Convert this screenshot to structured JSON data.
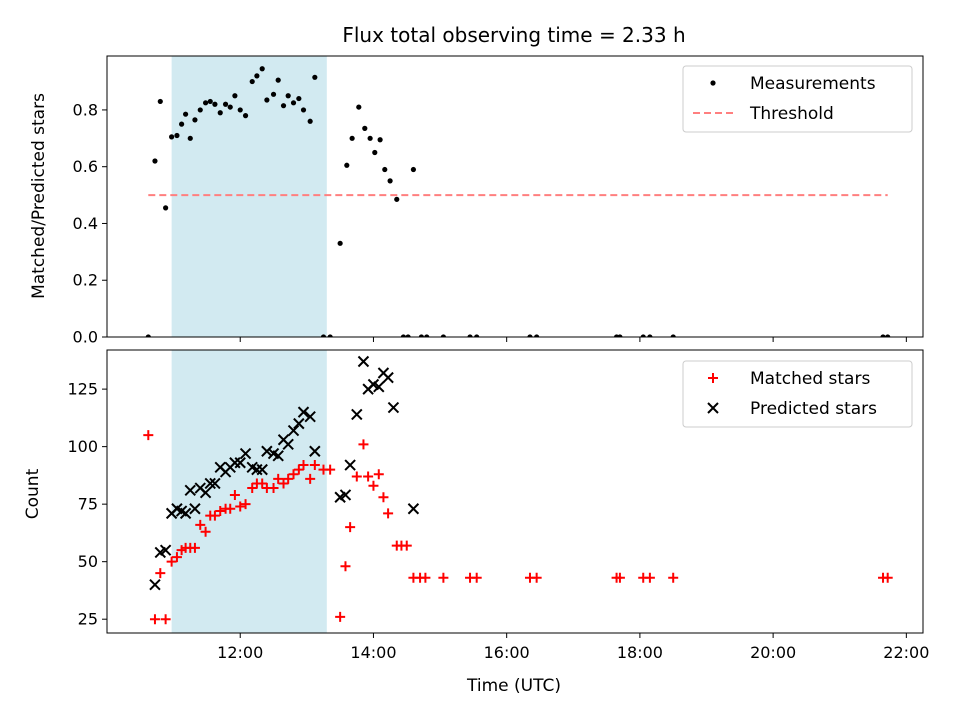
{
  "chart_data": {
    "type": "scatter",
    "title": "Flux total observing time = 2.33 h",
    "xlabel": "Time (UTC)",
    "xlim": [
      10.0,
      22.25
    ],
    "x_ticks": [
      12,
      14,
      16,
      18,
      20,
      22
    ],
    "x_tick_labels": [
      "12:00",
      "14:00",
      "16:00",
      "18:00",
      "20:00",
      "22:00"
    ],
    "shaded_interval": [
      10.97,
      13.3
    ],
    "shaded_color": "#add8e6",
    "panels": [
      {
        "ylabel": "Matched/Predicted stars",
        "ylim": [
          0.0,
          0.99
        ],
        "y_ticks": [
          0.0,
          0.2,
          0.4,
          0.6,
          0.8
        ],
        "y_tick_labels": [
          "0.0",
          "0.2",
          "0.4",
          "0.6",
          "0.8"
        ],
        "legend_position": "top-right",
        "series": [
          {
            "name": "Measurements",
            "kind": "dot",
            "color": "#000000",
            "points": [
              [
                10.62,
                0.0
              ],
              [
                10.72,
                0.62
              ],
              [
                10.8,
                0.83
              ],
              [
                10.88,
                0.455
              ],
              [
                10.97,
                0.705
              ],
              [
                11.05,
                0.71
              ],
              [
                11.12,
                0.75
              ],
              [
                11.18,
                0.785
              ],
              [
                11.25,
                0.7
              ],
              [
                11.32,
                0.765
              ],
              [
                11.4,
                0.8
              ],
              [
                11.48,
                0.825
              ],
              [
                11.55,
                0.83
              ],
              [
                11.62,
                0.82
              ],
              [
                11.7,
                0.79
              ],
              [
                11.78,
                0.82
              ],
              [
                11.85,
                0.81
              ],
              [
                11.92,
                0.85
              ],
              [
                12.0,
                0.8
              ],
              [
                12.08,
                0.78
              ],
              [
                12.18,
                0.9
              ],
              [
                12.25,
                0.92
              ],
              [
                12.33,
                0.945
              ],
              [
                12.4,
                0.835
              ],
              [
                12.5,
                0.855
              ],
              [
                12.57,
                0.905
              ],
              [
                12.65,
                0.815
              ],
              [
                12.72,
                0.85
              ],
              [
                12.8,
                0.825
              ],
              [
                12.88,
                0.84
              ],
              [
                12.95,
                0.8
              ],
              [
                13.05,
                0.76
              ],
              [
                13.12,
                0.915
              ],
              [
                13.25,
                0.0
              ],
              [
                13.35,
                0.0
              ],
              [
                13.5,
                0.33
              ],
              [
                13.6,
                0.605
              ],
              [
                13.68,
                0.7
              ],
              [
                13.78,
                0.81
              ],
              [
                13.87,
                0.735
              ],
              [
                13.95,
                0.7
              ],
              [
                14.02,
                0.65
              ],
              [
                14.1,
                0.695
              ],
              [
                14.17,
                0.59
              ],
              [
                14.25,
                0.55
              ],
              [
                14.35,
                0.485
              ],
              [
                14.45,
                0.0
              ],
              [
                14.52,
                0.0
              ],
              [
                14.6,
                0.59
              ],
              [
                14.72,
                0.0
              ],
              [
                14.8,
                0.0
              ],
              [
                15.05,
                0.0
              ],
              [
                15.45,
                0.0
              ],
              [
                15.55,
                0.0
              ],
              [
                16.35,
                0.0
              ],
              [
                16.45,
                0.0
              ],
              [
                17.65,
                0.0
              ],
              [
                17.7,
                0.0
              ],
              [
                18.05,
                0.0
              ],
              [
                18.15,
                0.0
              ],
              [
                18.5,
                0.0
              ],
              [
                21.65,
                0.0
              ],
              [
                21.72,
                0.0
              ]
            ]
          },
          {
            "name": "Threshold",
            "kind": "dashed-line",
            "color": "#ff7f7f",
            "points": [
              [
                10.62,
                0.5
              ],
              [
                21.72,
                0.5
              ]
            ]
          }
        ]
      },
      {
        "ylabel": "Count",
        "ylim": [
          19,
          142
        ],
        "y_ticks": [
          25,
          50,
          75,
          100,
          125
        ],
        "y_tick_labels": [
          "25",
          "50",
          "75",
          "100",
          "125"
        ],
        "legend_position": "top-right",
        "series": [
          {
            "name": "Matched stars",
            "kind": "plus",
            "color": "#ff0000",
            "points": [
              [
                10.62,
                105
              ],
              [
                10.72,
                25
              ],
              [
                10.8,
                45
              ],
              [
                10.88,
                25
              ],
              [
                10.97,
                50
              ],
              [
                11.05,
                52
              ],
              [
                11.12,
                55
              ],
              [
                11.18,
                56
              ],
              [
                11.25,
                56
              ],
              [
                11.32,
                56
              ],
              [
                11.4,
                66
              ],
              [
                11.48,
                63
              ],
              [
                11.55,
                70
              ],
              [
                11.62,
                70
              ],
              [
                11.7,
                72
              ],
              [
                11.78,
                73
              ],
              [
                11.85,
                73
              ],
              [
                11.92,
                79
              ],
              [
                12.0,
                74
              ],
              [
                12.08,
                75
              ],
              [
                12.18,
                82
              ],
              [
                12.25,
                84
              ],
              [
                12.33,
                84
              ],
              [
                12.4,
                82
              ],
              [
                12.5,
                82
              ],
              [
                12.57,
                86
              ],
              [
                12.65,
                84
              ],
              [
                12.72,
                86
              ],
              [
                12.8,
                88
              ],
              [
                12.88,
                90
              ],
              [
                12.95,
                92
              ],
              [
                13.05,
                86
              ],
              [
                13.12,
                92
              ],
              [
                13.25,
                90
              ],
              [
                13.35,
                90
              ],
              [
                13.5,
                26
              ],
              [
                13.58,
                48
              ],
              [
                13.65,
                65
              ],
              [
                13.75,
                87
              ],
              [
                13.85,
                101
              ],
              [
                13.92,
                87
              ],
              [
                14.0,
                83
              ],
              [
                14.08,
                88
              ],
              [
                14.15,
                78
              ],
              [
                14.22,
                71
              ],
              [
                14.35,
                57
              ],
              [
                14.42,
                57
              ],
              [
                14.5,
                57
              ],
              [
                14.6,
                43
              ],
              [
                14.7,
                43
              ],
              [
                14.78,
                43
              ],
              [
                15.05,
                43
              ],
              [
                15.45,
                43
              ],
              [
                15.55,
                43
              ],
              [
                16.35,
                43
              ],
              [
                16.45,
                43
              ],
              [
                17.65,
                43
              ],
              [
                17.7,
                43
              ],
              [
                18.05,
                43
              ],
              [
                18.15,
                43
              ],
              [
                18.5,
                43
              ],
              [
                21.65,
                43
              ],
              [
                21.72,
                43
              ]
            ]
          },
          {
            "name": "Predicted stars",
            "kind": "x",
            "color": "#000000",
            "points": [
              [
                10.72,
                40
              ],
              [
                10.8,
                54
              ],
              [
                10.88,
                55
              ],
              [
                10.97,
                71
              ],
              [
                11.05,
                73
              ],
              [
                11.12,
                72
              ],
              [
                11.18,
                71
              ],
              [
                11.25,
                81
              ],
              [
                11.32,
                73
              ],
              [
                11.4,
                82
              ],
              [
                11.48,
                80
              ],
              [
                11.55,
                84
              ],
              [
                11.62,
                84
              ],
              [
                11.7,
                91
              ],
              [
                11.78,
                89
              ],
              [
                11.85,
                91
              ],
              [
                11.92,
                93
              ],
              [
                12.0,
                93
              ],
              [
                12.08,
                97
              ],
              [
                12.18,
                91
              ],
              [
                12.25,
                90
              ],
              [
                12.33,
                90
              ],
              [
                12.4,
                98
              ],
              [
                12.5,
                97
              ],
              [
                12.57,
                96
              ],
              [
                12.65,
                103
              ],
              [
                12.72,
                101
              ],
              [
                12.8,
                107
              ],
              [
                12.88,
                110
              ],
              [
                12.95,
                115
              ],
              [
                13.05,
                113
              ],
              [
                13.12,
                98
              ],
              [
                13.5,
                78
              ],
              [
                13.58,
                79
              ],
              [
                13.65,
                92
              ],
              [
                13.75,
                114
              ],
              [
                13.85,
                137
              ],
              [
                13.92,
                125
              ],
              [
                14.0,
                127
              ],
              [
                14.08,
                126
              ],
              [
                14.15,
                132
              ],
              [
                14.22,
                130
              ],
              [
                14.3,
                117
              ],
              [
                14.6,
                73
              ]
            ]
          }
        ]
      }
    ]
  }
}
